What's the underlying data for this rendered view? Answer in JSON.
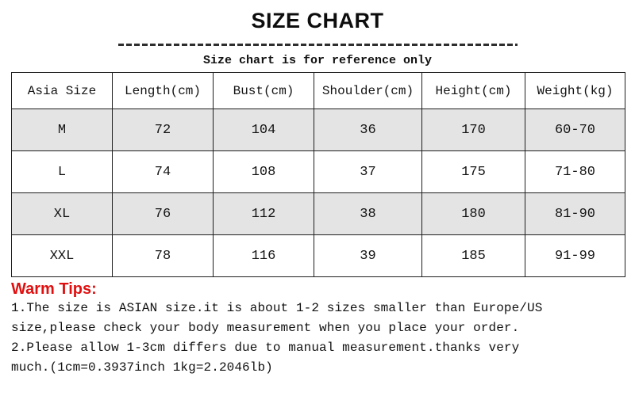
{
  "page": {
    "title": "SIZE CHART",
    "subtitle": "Size chart is for reference only"
  },
  "table": {
    "columns": [
      "Asia Size",
      "Length(cm)",
      "Bust(cm)",
      "Shoulder(cm)",
      "Height(cm)",
      "Weight(kg)"
    ],
    "rows": [
      {
        "cells": [
          "M",
          "72",
          "104",
          "36",
          "170",
          "60-70"
        ]
      },
      {
        "cells": [
          "L",
          "74",
          "108",
          "37",
          "175",
          "71-80"
        ]
      },
      {
        "cells": [
          "XL",
          "76",
          "112",
          "38",
          "180",
          "81-90"
        ]
      },
      {
        "cells": [
          "XXL",
          "78",
          "116",
          "39",
          "185",
          "91-99"
        ]
      }
    ]
  },
  "tips": {
    "heading": "Warm Tips:",
    "lines": [
      "1.The size is ASIAN size.it is about 1-2 sizes smaller than Europe/US",
      "size,please check your body measurement when you place your order.",
      "2.Please allow 1-3cm differs due to manual measurement.thanks very",
      "much.(1cm=0.3937inch 1kg=2.2046lb)"
    ]
  },
  "colors": {
    "accent_red": "#e11010",
    "row_shade": "#e4e4e4",
    "text": "#111111",
    "border": "#1f1f1f"
  }
}
